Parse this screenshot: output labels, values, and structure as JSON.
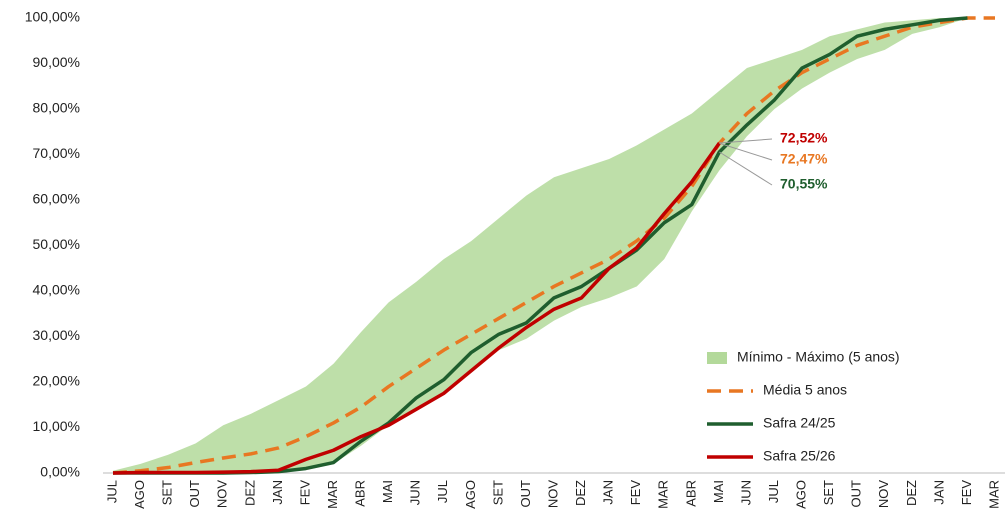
{
  "chart_data": {
    "type": "line",
    "categories": [
      "JUL",
      "AGO",
      "SET",
      "OUT",
      "NOV",
      "DEZ",
      "JAN",
      "FEV",
      "MAR",
      "ABR",
      "MAI",
      "JUN",
      "JUL",
      "AGO",
      "SET",
      "OUT",
      "NOV",
      "DEZ",
      "JAN",
      "FEV",
      "MAR",
      "ABR",
      "MAI",
      "JUN",
      "JUL",
      "AGO",
      "SET",
      "OUT",
      "NOV",
      "DEZ",
      "JAN",
      "FEV",
      "MAR"
    ],
    "ylim": [
      0,
      100
    ],
    "yticks": [
      {
        "value": 0,
        "label": "0,00%"
      },
      {
        "value": 10,
        "label": "10,00%"
      },
      {
        "value": 20,
        "label": "20,00%"
      },
      {
        "value": 30,
        "label": "30,00%"
      },
      {
        "value": 40,
        "label": "40,00%"
      },
      {
        "value": 50,
        "label": "50,00%"
      },
      {
        "value": 60,
        "label": "60,00%"
      },
      {
        "value": 70,
        "label": "70,00%"
      },
      {
        "value": 80,
        "label": "80,00%"
      },
      {
        "value": 90,
        "label": "90,00%"
      },
      {
        "value": 100,
        "label": "100,00%"
      }
    ],
    "grid": false,
    "legend": "bottom-right",
    "band": {
      "name": "Mínimo - Máximo (5 anos)",
      "color": "#b3d99a",
      "low": [
        0,
        0,
        0,
        0,
        0,
        0.2,
        0.4,
        0.8,
        2,
        6,
        10.5,
        14,
        17.5,
        22,
        27,
        29.5,
        33.5,
        36.5,
        38.5,
        41,
        47,
        57.5,
        66.5,
        74,
        80,
        84.5,
        88,
        91,
        93,
        96.5,
        98,
        100,
        100
      ],
      "high": [
        0.5,
        2,
        4,
        6.5,
        10.5,
        13,
        16,
        19,
        24,
        31,
        37.5,
        42,
        47,
        51,
        56,
        61,
        65,
        67,
        69,
        72,
        75.5,
        79,
        84,
        89,
        91,
        93,
        96,
        97.5,
        99,
        99.5,
        100,
        100,
        100
      ]
    },
    "series": [
      {
        "name": "Média 5 anos",
        "color": "#e87722",
        "dashed": true,
        "values": [
          0,
          0.5,
          1.2,
          2.3,
          3.3,
          4.2,
          5.5,
          8,
          11,
          14.5,
          19,
          23,
          27,
          30.5,
          34,
          37.5,
          41,
          44,
          47,
          51,
          56,
          63,
          72.47,
          79,
          84,
          88,
          91,
          94,
          96,
          98,
          99,
          100,
          100
        ],
        "value_labels": [
          null,
          null,
          null,
          null,
          null,
          null,
          null,
          null,
          null,
          null,
          null,
          null,
          null,
          null,
          null,
          null,
          null,
          null,
          null,
          null,
          null,
          null,
          "72,47%",
          null,
          null,
          null,
          null,
          null,
          null,
          null,
          null,
          null,
          null
        ]
      },
      {
        "name": "Safra 24/25",
        "color": "#1f5e2e",
        "dashed": false,
        "values": [
          0,
          0,
          0,
          0,
          0,
          0.1,
          0.3,
          1,
          2.3,
          7,
          11,
          16.5,
          20.5,
          26.5,
          30.5,
          33,
          38.5,
          41,
          45,
          49,
          55,
          59,
          70.55,
          76.5,
          82,
          89,
          92,
          96,
          97.5,
          98.5,
          99.5,
          100,
          null
        ],
        "value_labels": [
          null,
          null,
          null,
          null,
          null,
          null,
          null,
          null,
          null,
          null,
          null,
          null,
          null,
          null,
          null,
          null,
          null,
          null,
          null,
          null,
          null,
          null,
          "70,55%",
          null,
          null,
          null,
          null,
          null,
          null,
          null,
          null,
          null,
          null
        ]
      },
      {
        "name": "Safra 25/26",
        "color": "#c00000",
        "dashed": false,
        "values": [
          0,
          0.1,
          0.1,
          0.1,
          0.2,
          0.3,
          0.6,
          3,
          5,
          8,
          10.5,
          14,
          17.5,
          22.5,
          27.5,
          32,
          36,
          38.5,
          45,
          49.5,
          57,
          64,
          72.52,
          null,
          null,
          null,
          null,
          null,
          null,
          null,
          null,
          null,
          null
        ],
        "value_labels": [
          null,
          null,
          null,
          null,
          null,
          null,
          null,
          null,
          null,
          null,
          null,
          null,
          null,
          null,
          null,
          null,
          null,
          null,
          null,
          null,
          null,
          null,
          "72,52%",
          null,
          null,
          null,
          null,
          null,
          null,
          null,
          null,
          null,
          null
        ]
      }
    ]
  }
}
